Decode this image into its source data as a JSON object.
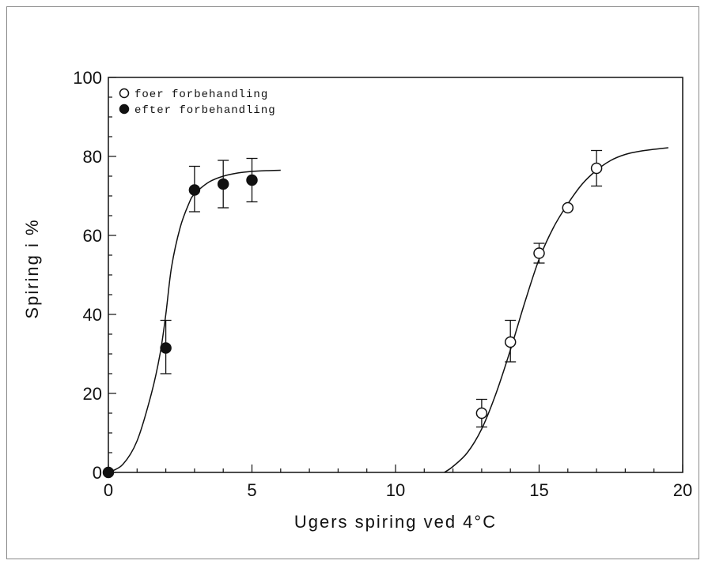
{
  "chart_data": {
    "type": "scatter",
    "xlabel": "Ugers spiring ved 4°C",
    "ylabel": "Spiring i %",
    "xlim": [
      0,
      20
    ],
    "ylim": [
      0,
      100
    ],
    "x_ticks": [
      "0",
      "5",
      "10",
      "15",
      "20"
    ],
    "y_ticks": [
      "0",
      "20",
      "40",
      "60",
      "80",
      "100"
    ],
    "legend_position": "top-left",
    "grid": false,
    "series": [
      {
        "name": "foer forbehandling",
        "marker": "open-circle",
        "points": [
          {
            "x": 13,
            "y": 15,
            "err_low": 11.5,
            "err_high": 18.5
          },
          {
            "x": 14,
            "y": 33,
            "err_low": 28,
            "err_high": 38.5
          },
          {
            "x": 15,
            "y": 55.5,
            "err_low": 53,
            "err_high": 58
          },
          {
            "x": 16,
            "y": 67,
            "err_low": null,
            "err_high": null
          },
          {
            "x": 17,
            "y": 77,
            "err_low": 72.5,
            "err_high": 81.5
          }
        ],
        "fit_curve": [
          [
            11.7,
            0
          ],
          [
            12,
            1.5
          ],
          [
            12.5,
            5
          ],
          [
            13,
            11
          ],
          [
            13.5,
            20
          ],
          [
            14,
            31
          ],
          [
            14.5,
            43
          ],
          [
            15,
            54
          ],
          [
            15.5,
            62
          ],
          [
            16,
            68
          ],
          [
            16.5,
            73
          ],
          [
            17,
            76.5
          ],
          [
            17.5,
            79
          ],
          [
            18,
            80.5
          ],
          [
            18.5,
            81.3
          ],
          [
            19,
            81.8
          ],
          [
            19.5,
            82.2
          ]
        ]
      },
      {
        "name": "efter forbehandling",
        "marker": "filled-circle",
        "points": [
          {
            "x": 0,
            "y": 0,
            "err_low": null,
            "err_high": null
          },
          {
            "x": 2,
            "y": 31.5,
            "err_low": 25,
            "err_high": 38.5
          },
          {
            "x": 3,
            "y": 71.5,
            "err_low": 66,
            "err_high": 77.5
          },
          {
            "x": 4,
            "y": 73,
            "err_low": 67,
            "err_high": 79
          },
          {
            "x": 5,
            "y": 74,
            "err_low": 68.5,
            "err_high": 79.5
          }
        ],
        "fit_curve": [
          [
            0,
            0
          ],
          [
            0.5,
            2
          ],
          [
            1,
            8
          ],
          [
            1.5,
            20
          ],
          [
            1.8,
            30
          ],
          [
            2,
            40
          ],
          [
            2.2,
            52
          ],
          [
            2.5,
            62
          ],
          [
            2.8,
            68
          ],
          [
            3,
            70.5
          ],
          [
            3.5,
            73.5
          ],
          [
            4,
            75
          ],
          [
            4.5,
            75.8
          ],
          [
            5,
            76.2
          ],
          [
            5.5,
            76.4
          ],
          [
            6,
            76.5
          ]
        ]
      }
    ]
  }
}
